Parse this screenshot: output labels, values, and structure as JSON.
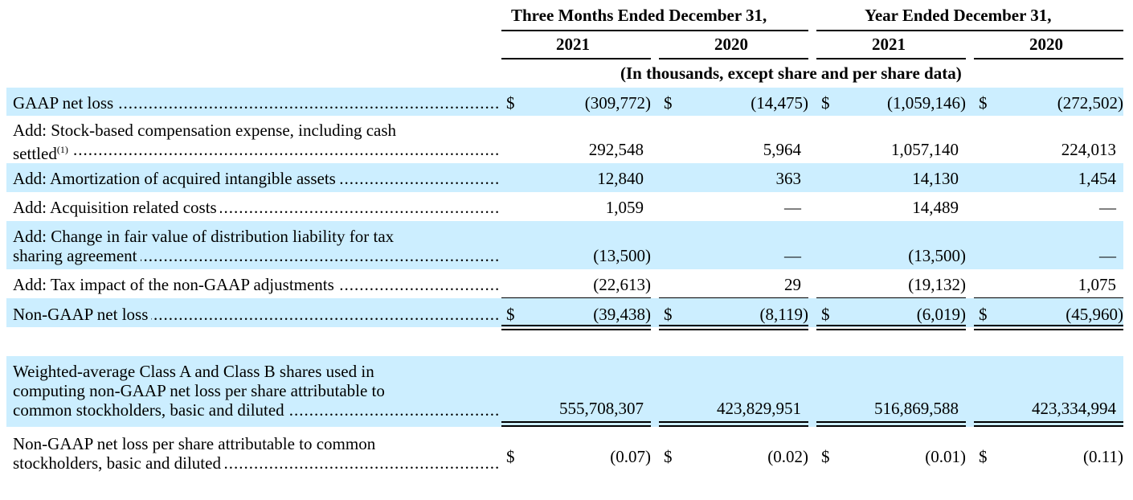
{
  "header": {
    "group1": "Three Months Ended December 31,",
    "group2": "Year Ended December 31,",
    "col1": "2021",
    "col2": "2020",
    "col3": "2021",
    "col4": "2020",
    "units": "(In thousands, except share and per share data)"
  },
  "rows": [
    {
      "label": "GAAP net loss",
      "cur": "$",
      "v1": "(309,772)",
      "v2": "(14,475)",
      "v3": "(1,059,146)",
      "v4": "(272,502)"
    },
    {
      "label1": "Add: Stock-based compensation expense, including cash",
      "label2": "settled",
      "footnote": "(1)",
      "v1": "292,548",
      "v2": "5,964",
      "v3": "1,057,140",
      "v4": "224,013"
    },
    {
      "label": "Add: Amortization of acquired intangible assets",
      "v1": "12,840",
      "v2": "363",
      "v3": "14,130",
      "v4": "1,454"
    },
    {
      "label": "Add: Acquisition related costs",
      "v1": "1,059",
      "v2": "—",
      "v3": "14,489",
      "v4": "—"
    },
    {
      "label1": "Add: Change in fair value of distribution liability for tax",
      "label2": "sharing agreement",
      "v1": "(13,500)",
      "v2": "—",
      "v3": "(13,500)",
      "v4": "—"
    },
    {
      "label": "Add: Tax impact of the non-GAAP adjustments",
      "v1": "(22,613)",
      "v2": "29",
      "v3": "(19,132)",
      "v4": "1,075"
    },
    {
      "label": "Non-GAAP net loss",
      "cur": "$",
      "v1": "(39,438)",
      "v2": "(8,119)",
      "v3": "(6,019)",
      "v4": "(45,960)"
    },
    {
      "label1": "Weighted-average Class A and Class B shares used in",
      "label2": "computing non-GAAP net loss per share attributable to",
      "label3": "common stockholders, basic and diluted",
      "v1": "555,708,307",
      "v2": "423,829,951",
      "v3": "516,869,588",
      "v4": "423,334,994"
    },
    {
      "label1": "Non-GAAP net loss per share attributable to common",
      "label2": "stockholders, basic and diluted",
      "cur": "$",
      "v1": "(0.07)",
      "v2": "(0.02)",
      "v3": "(0.01)",
      "v4": "(0.11)"
    }
  ]
}
